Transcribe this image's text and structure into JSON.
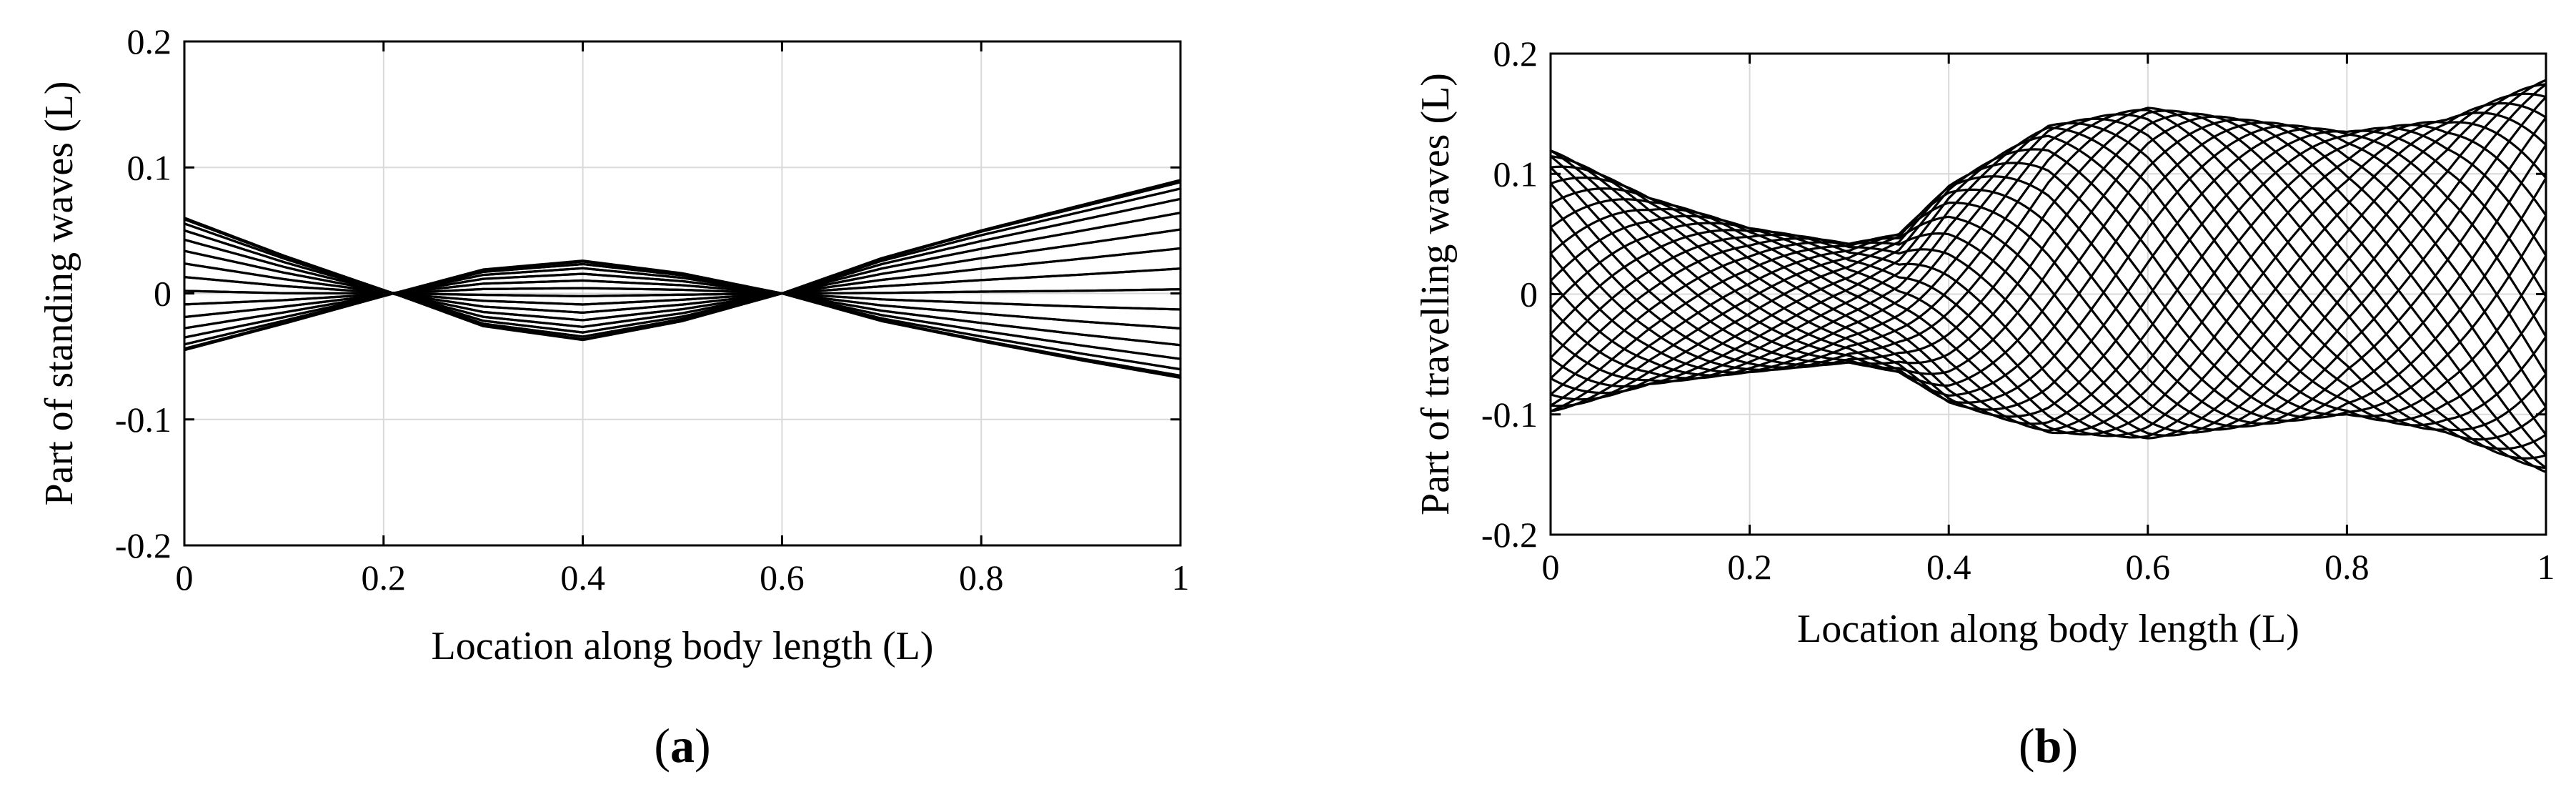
{
  "chart_data": [
    {
      "type": "line",
      "panel_label": "a",
      "xlabel": "Location along body length (L)",
      "ylabel": "Part of standing waves (L)",
      "xlim": [
        0,
        1
      ],
      "ylim": [
        -0.2,
        0.2
      ],
      "xticks": [
        "0",
        "0.2",
        "0.4",
        "0.6",
        "0.8",
        "1"
      ],
      "yticks": [
        "-0.2",
        "-0.1",
        "0",
        "0.1",
        "0.2"
      ],
      "grid": true,
      "legend": "none",
      "wave": {
        "kind": "standing",
        "envelope_x": [
          0,
          0.1,
          0.21,
          0.3,
          0.4,
          0.5,
          0.6,
          0.7,
          0.8,
          0.9,
          1
        ],
        "envelope_upper": [
          0.06,
          0.03,
          0,
          0.019,
          0.026,
          0.016,
          0,
          0.028,
          0.05,
          0.07,
          0.09
        ],
        "envelope_lower": [
          -0.045,
          -0.024,
          0,
          -0.026,
          -0.037,
          -0.022,
          0,
          -0.022,
          -0.038,
          -0.053,
          -0.067
        ],
        "phase_count": 30
      }
    },
    {
      "type": "line",
      "panel_label": "b",
      "xlabel": "Location along body length (L)",
      "ylabel": "Part of travelling waves (L)",
      "xlim": [
        0,
        1
      ],
      "ylim": [
        -0.2,
        0.2
      ],
      "xticks": [
        "0",
        "0.2",
        "0.4",
        "0.6",
        "0.8",
        "1"
      ],
      "yticks": [
        "-0.2",
        "-0.1",
        "0",
        "0.1",
        "0.2"
      ],
      "grid": true,
      "legend": "none",
      "wave": {
        "kind": "travelling",
        "envelope_x": [
          0,
          0.1,
          0.2,
          0.3,
          0.35,
          0.4,
          0.5,
          0.6,
          0.7,
          0.8,
          0.9,
          1
        ],
        "envelope_upper": [
          0.12,
          0.08,
          0.055,
          0.042,
          0.05,
          0.09,
          0.14,
          0.155,
          0.145,
          0.135,
          0.145,
          0.178
        ],
        "envelope_lower": [
          -0.098,
          -0.075,
          -0.065,
          -0.057,
          -0.065,
          -0.09,
          -0.115,
          -0.12,
          -0.11,
          -0.1,
          -0.115,
          -0.148
        ],
        "waves_along_body": 1.35,
        "phase_count": 30
      }
    }
  ]
}
